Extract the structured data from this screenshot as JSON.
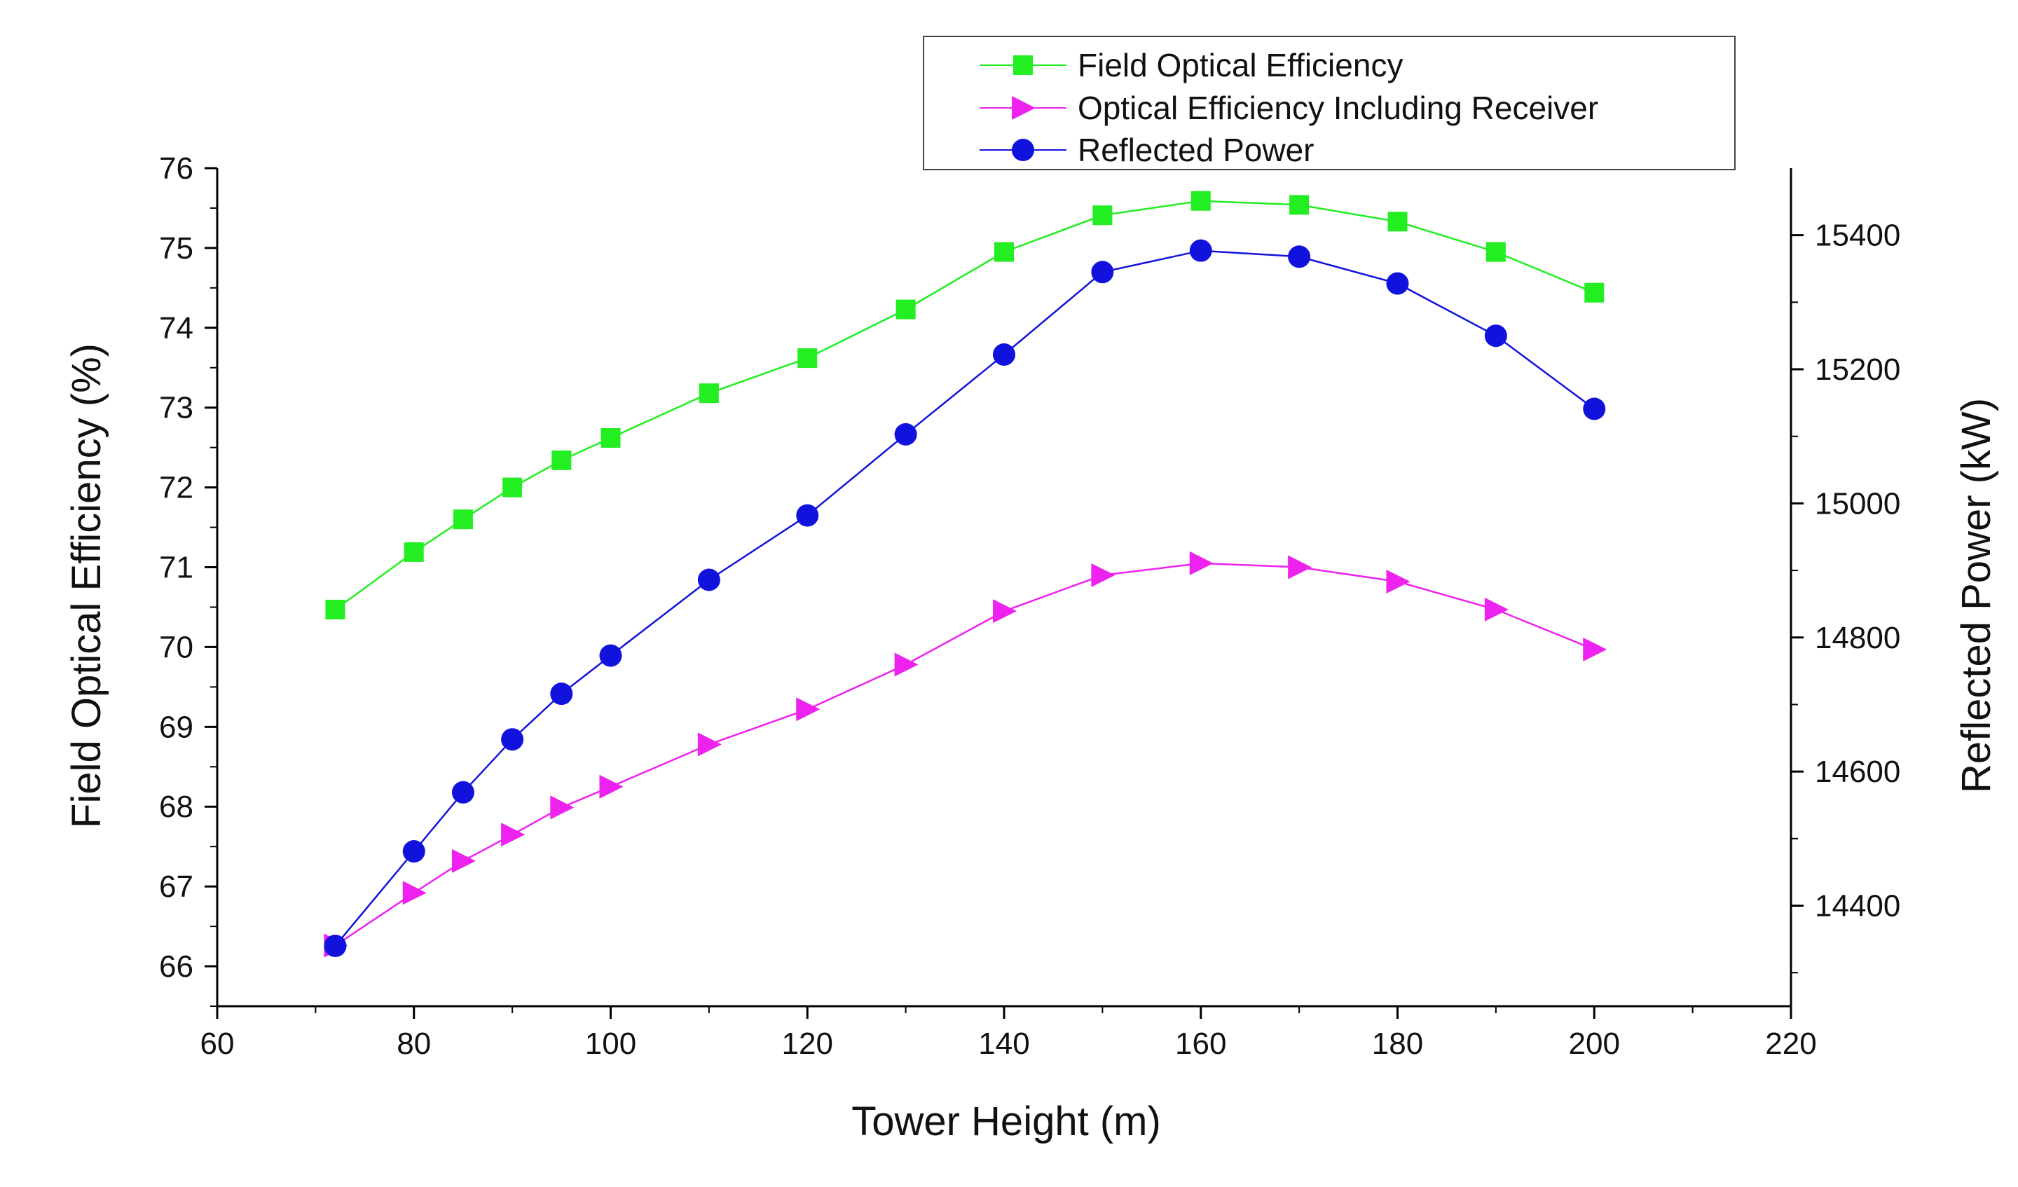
{
  "chart_data": {
    "type": "line",
    "title": "",
    "xlabel": "Tower Height (m)",
    "ylabel": "Field Optical Efficiency (%)",
    "y2label": "Reflected Power (kW)",
    "xlim": [
      60,
      220
    ],
    "ylim": [
      65.5,
      76
    ],
    "y2lim": [
      14250,
      15500
    ],
    "xticks": [
      60,
      80,
      100,
      120,
      140,
      160,
      180,
      200,
      220
    ],
    "yticks": [
      66,
      67,
      68,
      69,
      70,
      71,
      72,
      73,
      74,
      75,
      76
    ],
    "y2ticks": [
      14400,
      14600,
      14800,
      15000,
      15200,
      15400
    ],
    "legend_position": "top-right",
    "series": [
      {
        "name": "Field Optical Efficiency",
        "axis": "left",
        "color": "#22ee22",
        "marker": "square",
        "x": [
          72,
          80,
          85,
          90,
          95,
          100,
          110,
          120,
          130,
          140,
          150,
          160,
          170,
          180,
          190,
          200
        ],
        "y": [
          70.47,
          71.19,
          71.6,
          72.0,
          72.34,
          72.62,
          73.18,
          73.62,
          74.23,
          74.95,
          75.41,
          75.59,
          75.54,
          75.33,
          74.95,
          74.44
        ]
      },
      {
        "name": "Optical Efficiency Including Receiver",
        "axis": "left",
        "color": "#ee22ee",
        "marker": "triangle-right",
        "x": [
          72,
          80,
          85,
          90,
          95,
          100,
          110,
          120,
          130,
          140,
          150,
          160,
          170,
          180,
          190,
          200
        ],
        "y": [
          66.26,
          66.92,
          67.32,
          67.65,
          67.99,
          68.25,
          68.78,
          69.22,
          69.78,
          70.45,
          70.9,
          71.05,
          71.0,
          70.82,
          70.47,
          69.97
        ]
      },
      {
        "name": "Reflected Power",
        "axis": "right",
        "color": "#1212dd",
        "marker": "circle",
        "x": [
          72,
          80,
          85,
          90,
          95,
          100,
          110,
          120,
          130,
          140,
          150,
          160,
          170,
          180,
          190,
          200
        ],
        "y": [
          14340,
          14481,
          14569,
          14648,
          14716,
          14773,
          14886,
          14982,
          15103,
          15222,
          15345,
          15377,
          15368,
          15328,
          15250,
          15141
        ]
      }
    ]
  }
}
